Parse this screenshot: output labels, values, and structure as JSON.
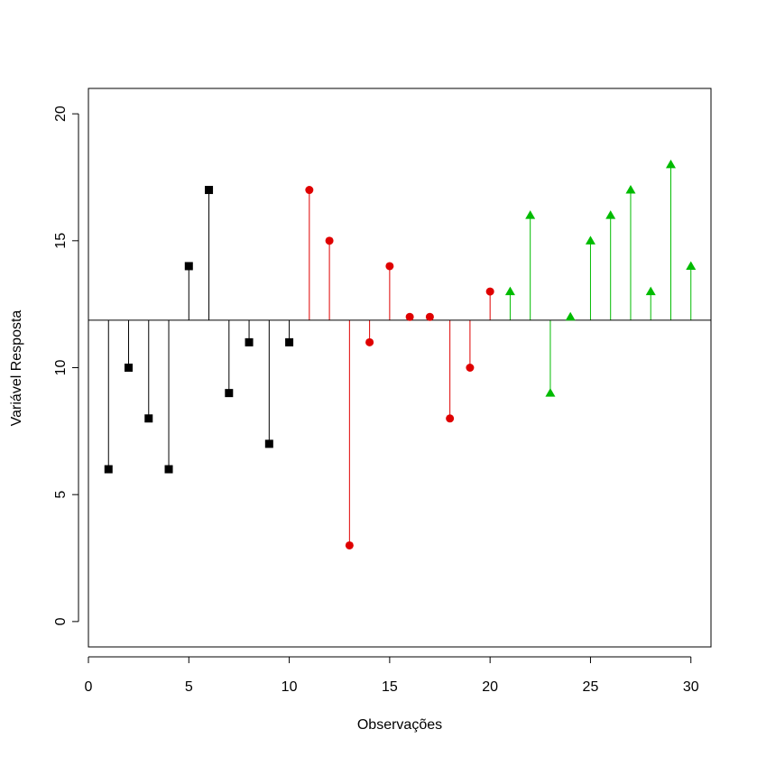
{
  "chart_data": {
    "type": "stem",
    "title": "",
    "xlabel": "Observações",
    "ylabel": "Variável Resposta",
    "xlim": [
      0,
      31
    ],
    "ylim": [
      -1,
      21
    ],
    "x_ticks": [
      0,
      5,
      10,
      15,
      20,
      25,
      30
    ],
    "y_ticks": [
      0,
      5,
      10,
      15,
      20
    ],
    "baseline": 11.87,
    "grid": false,
    "legend": "none",
    "series": [
      {
        "color": "#000000",
        "marker": "square",
        "x": [
          1,
          2,
          3,
          4,
          5,
          6,
          7,
          8,
          9,
          10
        ],
        "y": [
          6,
          10,
          8,
          6,
          14,
          17,
          9,
          11,
          7,
          11
        ]
      },
      {
        "color": "#DF0000",
        "marker": "circle",
        "x": [
          11,
          12,
          13,
          14,
          15,
          16,
          17,
          18,
          19,
          20
        ],
        "y": [
          17,
          15,
          3,
          11,
          14,
          12,
          12,
          8,
          10,
          13
        ]
      },
      {
        "color": "#00BB00",
        "marker": "triangle",
        "x": [
          21,
          22,
          23,
          24,
          25,
          26,
          27,
          28,
          29,
          30
        ],
        "y": [
          13,
          16,
          9,
          12,
          15,
          16,
          17,
          13,
          18,
          14
        ]
      }
    ]
  }
}
